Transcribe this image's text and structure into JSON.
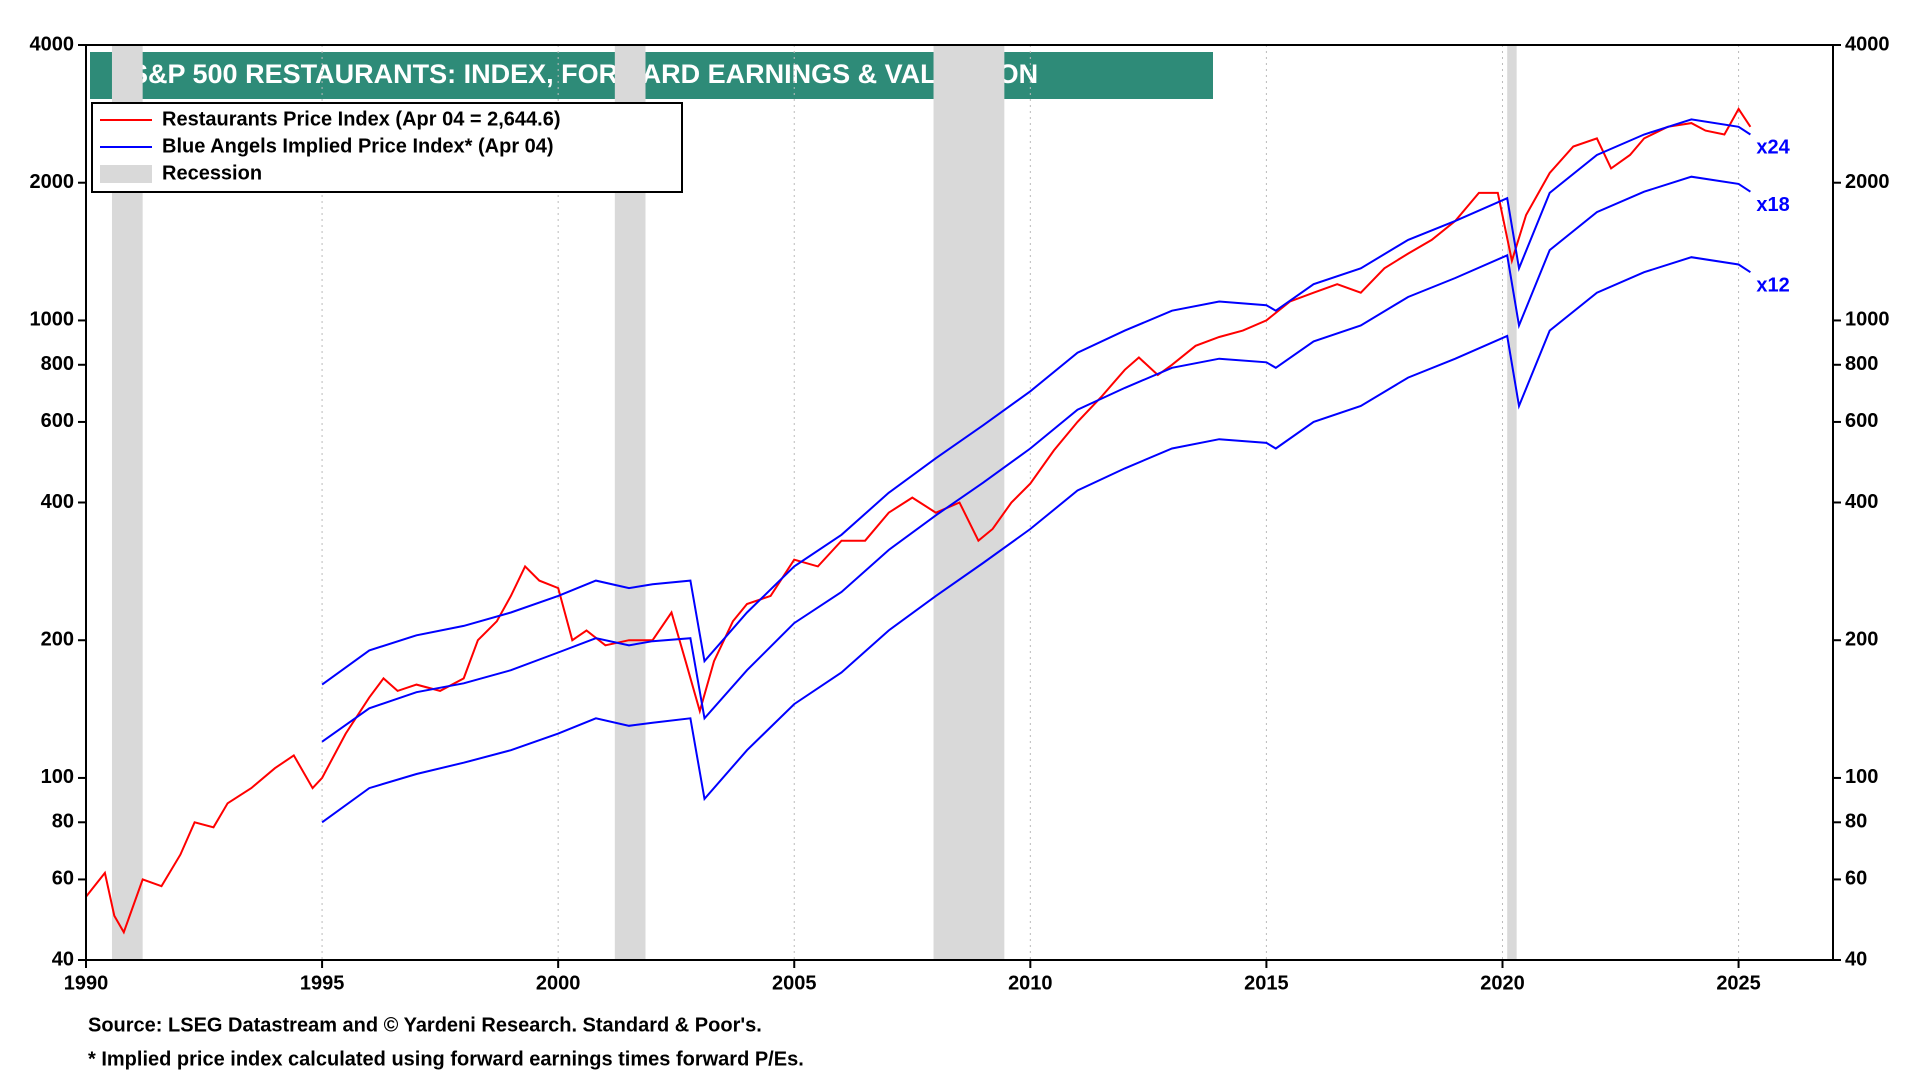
{
  "chart_data": {
    "type": "line",
    "title": "S&P 500 RESTAURANTS: INDEX, FORWARD EARNINGS & VALUATION",
    "log_scale": true,
    "xgrid": true,
    "xlim": [
      1990,
      2027
    ],
    "xticks": [
      1990,
      1995,
      2000,
      2005,
      2010,
      2015,
      2020,
      2025
    ],
    "ylim": [
      40,
      4000
    ],
    "yticks": [
      40,
      60,
      80,
      100,
      200,
      400,
      600,
      800,
      1000,
      2000,
      4000
    ],
    "recession_label": "Recession",
    "recession_color": "#d9d9d9",
    "recessions": [
      [
        1990.55,
        1991.2
      ],
      [
        2001.2,
        2001.85
      ],
      [
        2007.95,
        2009.45
      ],
      [
        2020.1,
        2020.3
      ]
    ],
    "blue_legend": "Blue Angels Implied Price Index* (Apr 04)",
    "series": [
      {
        "name": "Restaurants Price Index (Apr 04 = 2,644.6)",
        "color": "#ff0000",
        "x": [
          1990.0,
          1990.4,
          1990.6,
          1990.8,
          1991.2,
          1991.6,
          1992.0,
          1992.3,
          1992.7,
          1993.0,
          1993.5,
          1994.0,
          1994.4,
          1994.8,
          1995.0,
          1995.5,
          1996.0,
          1996.3,
          1996.6,
          1997.0,
          1997.5,
          1998.0,
          1998.3,
          1998.7,
          1999.0,
          1999.3,
          1999.6,
          2000.0,
          2000.3,
          2000.6,
          2001.0,
          2001.5,
          2002.0,
          2002.4,
          2002.7,
          2003.0,
          2003.3,
          2003.7,
          2004.0,
          2004.5,
          2005.0,
          2005.5,
          2006.0,
          2006.5,
          2007.0,
          2007.5,
          2008.0,
          2008.5,
          2008.9,
          2009.2,
          2009.6,
          2010.0,
          2010.5,
          2011.0,
          2011.5,
          2012.0,
          2012.3,
          2012.7,
          2013.0,
          2013.5,
          2014.0,
          2014.5,
          2015.0,
          2015.5,
          2016.0,
          2016.5,
          2017.0,
          2017.5,
          2018.0,
          2018.5,
          2019.0,
          2019.5,
          2019.9,
          2020.2,
          2020.5,
          2021.0,
          2021.5,
          2022.0,
          2022.3,
          2022.7,
          2023.0,
          2023.5,
          2024.0,
          2024.3,
          2024.7,
          2025.0,
          2025.25
        ],
        "values": [
          55,
          62,
          50,
          46,
          60,
          58,
          68,
          80,
          78,
          88,
          95,
          105,
          112,
          95,
          100,
          125,
          150,
          165,
          155,
          160,
          155,
          165,
          200,
          220,
          250,
          290,
          270,
          260,
          200,
          210,
          195,
          200,
          200,
          230,
          180,
          140,
          180,
          220,
          240,
          250,
          300,
          290,
          330,
          330,
          380,
          410,
          380,
          400,
          330,
          350,
          400,
          440,
          520,
          600,
          680,
          780,
          830,
          760,
          800,
          880,
          920,
          950,
          1000,
          1100,
          1150,
          1200,
          1150,
          1300,
          1400,
          1500,
          1650,
          1900,
          1900,
          1350,
          1700,
          2100,
          2400,
          2500,
          2150,
          2300,
          2500,
          2650,
          2700,
          2600,
          2550,
          2900,
          2650
        ]
      },
      {
        "name": "x24",
        "color": "#0000ff",
        "x": [
          1995.0,
          1996.0,
          1997.0,
          1998.0,
          1999.0,
          2000.0,
          2000.8,
          2001.5,
          2002.0,
          2002.8,
          2003.1,
          2004.0,
          2005.0,
          2006.0,
          2007.0,
          2008.0,
          2009.0,
          2010.0,
          2011.0,
          2012.0,
          2013.0,
          2014.0,
          2015.0,
          2015.2,
          2016.0,
          2017.0,
          2018.0,
          2019.0,
          2020.1,
          2020.35,
          2021.0,
          2022.0,
          2023.0,
          2024.0,
          2025.0,
          2025.25
        ],
        "values": [
          160,
          190,
          205,
          215,
          230,
          250,
          270,
          260,
          265,
          270,
          180,
          230,
          290,
          340,
          420,
          500,
          590,
          700,
          850,
          950,
          1050,
          1100,
          1080,
          1050,
          1200,
          1300,
          1500,
          1650,
          1850,
          1300,
          1900,
          2300,
          2550,
          2750,
          2650,
          2550
        ]
      },
      {
        "name": "x18",
        "color": "#0000ff",
        "x": [
          1995.0,
          1996.0,
          1997.0,
          1998.0,
          1999.0,
          2000.0,
          2000.8,
          2001.5,
          2002.0,
          2002.8,
          2003.1,
          2004.0,
          2005.0,
          2006.0,
          2007.0,
          2008.0,
          2009.0,
          2010.0,
          2011.0,
          2012.0,
          2013.0,
          2014.0,
          2015.0,
          2015.2,
          2016.0,
          2017.0,
          2018.0,
          2019.0,
          2020.1,
          2020.35,
          2021.0,
          2022.0,
          2023.0,
          2024.0,
          2025.0,
          2025.25
        ],
        "values": [
          120,
          142,
          154,
          161,
          172,
          188,
          202,
          195,
          199,
          202,
          135,
          172,
          218,
          255,
          315,
          375,
          442,
          525,
          638,
          712,
          788,
          825,
          810,
          788,
          900,
          975,
          1125,
          1238,
          1388,
          975,
          1425,
          1725,
          1912,
          2062,
          1988,
          1912
        ]
      },
      {
        "name": "x12",
        "color": "#0000ff",
        "x": [
          1995.0,
          1996.0,
          1997.0,
          1998.0,
          1999.0,
          2000.0,
          2000.8,
          2001.5,
          2002.0,
          2002.8,
          2003.1,
          2004.0,
          2005.0,
          2006.0,
          2007.0,
          2008.0,
          2009.0,
          2010.0,
          2011.0,
          2012.0,
          2013.0,
          2014.0,
          2015.0,
          2015.2,
          2016.0,
          2017.0,
          2018.0,
          2019.0,
          2020.1,
          2020.35,
          2021.0,
          2022.0,
          2023.0,
          2024.0,
          2025.0,
          2025.25
        ],
        "values": [
          80,
          95,
          102,
          108,
          115,
          125,
          135,
          130,
          132,
          135,
          90,
          115,
          145,
          170,
          210,
          250,
          295,
          350,
          425,
          475,
          525,
          550,
          540,
          525,
          600,
          650,
          750,
          825,
          925,
          650,
          950,
          1150,
          1275,
          1375,
          1325,
          1275
        ]
      }
    ],
    "source": "Source: LSEG Datastream and © Yardeni Research. Standard & Poor's.",
    "note": "* Implied price index calculated using forward earnings times forward P/Es."
  }
}
